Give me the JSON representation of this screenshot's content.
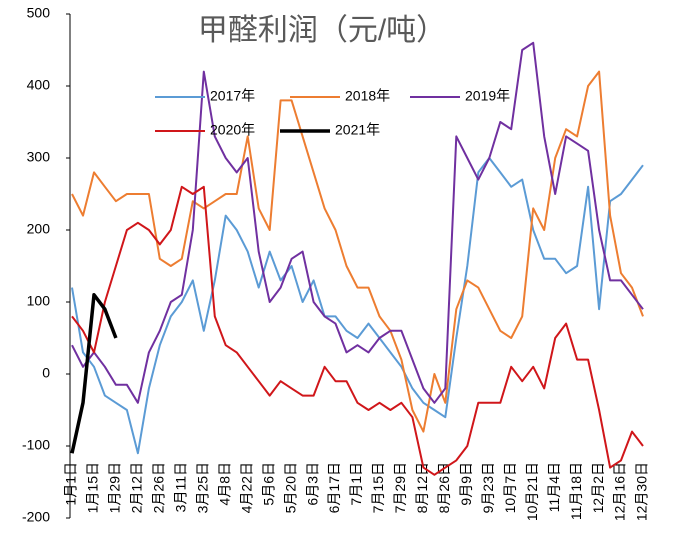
{
  "chart_data": {
    "type": "line",
    "title": "甲醛利润（元/吨）",
    "categories": [
      "1月1日",
      null,
      "1月15日",
      null,
      "1月29日",
      null,
      "2月12日",
      null,
      "2月26日",
      null,
      "3月11日",
      null,
      "3月25日",
      null,
      "4月8日",
      null,
      "4月22日",
      null,
      "5月6日",
      null,
      "5月20日",
      null,
      "6月3日",
      null,
      "6月17日",
      null,
      "7月1日",
      null,
      "7月15日",
      null,
      "7月29日",
      null,
      "8月12日",
      null,
      "8月26日",
      null,
      "9月9日",
      null,
      "9月23日",
      null,
      "10月7日",
      null,
      "10月21日",
      null,
      "11月4日",
      null,
      "11月18日",
      null,
      "12月2日",
      null,
      "12月16日",
      null,
      "12月30日"
    ],
    "series": [
      {
        "name": "2017年",
        "color": "#5b9bd5",
        "values": [
          120,
          30,
          10,
          -30,
          -40,
          -50,
          -110,
          -20,
          40,
          80,
          100,
          130,
          60,
          130,
          220,
          200,
          170,
          120,
          170,
          130,
          150,
          100,
          130,
          80,
          80,
          60,
          50,
          70,
          50,
          30,
          10,
          -20,
          -40,
          -50,
          -60,
          50,
          150,
          280,
          300,
          280,
          260,
          270,
          200,
          160,
          160,
          140,
          150,
          260,
          90,
          240,
          250,
          270,
          290
        ]
      },
      {
        "name": "2018年",
        "color": "#ed7d31",
        "values": [
          250,
          220,
          280,
          260,
          240,
          250,
          250,
          250,
          160,
          150,
          160,
          240,
          230,
          240,
          250,
          250,
          330,
          230,
          200,
          380,
          380,
          330,
          280,
          230,
          200,
          150,
          120,
          120,
          80,
          60,
          20,
          -50,
          -80,
          0,
          -40,
          90,
          130,
          120,
          90,
          60,
          50,
          80,
          230,
          200,
          300,
          340,
          330,
          400,
          420,
          220,
          140,
          120,
          80
        ]
      },
      {
        "name": "2019年",
        "color": "#7030a0",
        "values": [
          40,
          10,
          30,
          10,
          -15,
          -15,
          -40,
          30,
          60,
          100,
          110,
          200,
          420,
          330,
          300,
          280,
          300,
          170,
          100,
          120,
          160,
          170,
          100,
          80,
          70,
          30,
          40,
          30,
          50,
          60,
          60,
          20,
          -20,
          -40,
          -20,
          330,
          300,
          270,
          300,
          350,
          340,
          450,
          460,
          330,
          250,
          330,
          320,
          310,
          200,
          130,
          130,
          110,
          90
        ]
      },
      {
        "name": "2020年",
        "color": "#d0161a",
        "values": [
          80,
          60,
          30,
          100,
          150,
          200,
          210,
          200,
          180,
          200,
          260,
          250,
          260,
          80,
          40,
          30,
          10,
          -10,
          -30,
          -10,
          -20,
          -30,
          -30,
          10,
          -10,
          -10,
          -40,
          -50,
          -40,
          -50,
          -40,
          -60,
          -130,
          -140,
          -130,
          -120,
          -100,
          -40,
          -40,
          -40,
          10,
          -10,
          10,
          -20,
          50,
          70,
          20,
          20,
          -50,
          -130,
          -120,
          -80,
          -100
        ]
      },
      {
        "name": "2021年",
        "color": "#000000",
        "values": [
          -110,
          -40,
          110,
          90,
          50,
          null,
          null,
          null,
          null,
          null,
          null,
          null,
          null,
          null,
          null,
          null,
          null,
          null,
          null,
          null,
          null,
          null,
          null,
          null,
          null,
          null,
          null,
          null,
          null,
          null,
          null,
          null,
          null,
          null,
          null,
          null,
          null,
          null,
          null,
          null,
          null,
          null,
          null,
          null,
          null,
          null,
          null,
          null,
          null,
          null,
          null,
          null,
          null
        ]
      }
    ],
    "ylim": [
      -200,
      500
    ],
    "yticks": [
      -200,
      -100,
      0,
      100,
      200,
      300,
      400,
      500
    ]
  }
}
